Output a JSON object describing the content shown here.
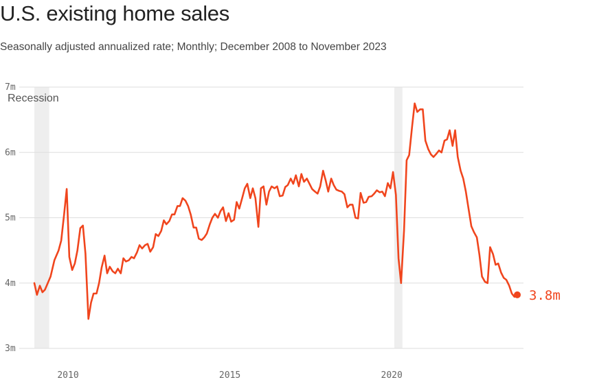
{
  "title": "U.S. existing home sales",
  "subtitle": "Seasonally adjusted annualized rate; Monthly; December 2008 to November 2023",
  "colors": {
    "line": "#f0451d",
    "grid": "#dddddd",
    "recession_band": "#eeeeee",
    "text": "#222222"
  },
  "chart_data": {
    "type": "line",
    "title": "U.S. existing home sales",
    "subtitle": "Seasonally adjusted annualized rate; Monthly; December 2008 to November 2023",
    "x_unit": "year",
    "xlim": [
      2008.96,
      2023.88
    ],
    "ylim": [
      3,
      7
    ],
    "x_ticks": [
      2010,
      2015,
      2020
    ],
    "x_tick_labels": [
      "2010",
      "2015",
      "2020"
    ],
    "y_ticks": [
      3,
      4,
      5,
      6,
      7
    ],
    "y_tick_labels": [
      "3m",
      "4m",
      "5m",
      "6m",
      "7m"
    ],
    "grid": true,
    "recessions": [
      {
        "label": "Recession",
        "start": 2008.96,
        "end": 2009.42
      },
      {
        "label": "",
        "start": 2020.08,
        "end": 2020.33
      }
    ],
    "end_label": "3.8m",
    "series": [
      {
        "name": "Existing home sales",
        "points": [
          [
            2008.96,
            4.0
          ],
          [
            2009.04,
            3.82
          ],
          [
            2009.13,
            3.96
          ],
          [
            2009.21,
            3.86
          ],
          [
            2009.29,
            3.9
          ],
          [
            2009.46,
            4.1
          ],
          [
            2009.58,
            4.35
          ],
          [
            2009.71,
            4.5
          ],
          [
            2009.79,
            4.65
          ],
          [
            2009.88,
            5.05
          ],
          [
            2009.96,
            5.44
          ],
          [
            2010.04,
            4.4
          ],
          [
            2010.13,
            4.2
          ],
          [
            2010.21,
            4.3
          ],
          [
            2010.29,
            4.5
          ],
          [
            2010.38,
            4.84
          ],
          [
            2010.46,
            4.88
          ],
          [
            2010.54,
            4.45
          ],
          [
            2010.63,
            3.45
          ],
          [
            2010.71,
            3.7
          ],
          [
            2010.79,
            3.84
          ],
          [
            2010.88,
            3.84
          ],
          [
            2010.96,
            4.0
          ],
          [
            2011.04,
            4.24
          ],
          [
            2011.13,
            4.42
          ],
          [
            2011.21,
            4.15
          ],
          [
            2011.29,
            4.25
          ],
          [
            2011.38,
            4.18
          ],
          [
            2011.46,
            4.15
          ],
          [
            2011.54,
            4.22
          ],
          [
            2011.63,
            4.15
          ],
          [
            2011.71,
            4.38
          ],
          [
            2011.79,
            4.33
          ],
          [
            2011.88,
            4.35
          ],
          [
            2011.96,
            4.4
          ],
          [
            2012.04,
            4.38
          ],
          [
            2012.13,
            4.47
          ],
          [
            2012.21,
            4.58
          ],
          [
            2012.29,
            4.53
          ],
          [
            2012.38,
            4.58
          ],
          [
            2012.46,
            4.6
          ],
          [
            2012.54,
            4.48
          ],
          [
            2012.63,
            4.55
          ],
          [
            2012.71,
            4.75
          ],
          [
            2012.79,
            4.72
          ],
          [
            2012.88,
            4.8
          ],
          [
            2012.96,
            4.96
          ],
          [
            2013.04,
            4.9
          ],
          [
            2013.13,
            4.95
          ],
          [
            2013.21,
            5.05
          ],
          [
            2013.29,
            5.05
          ],
          [
            2013.38,
            5.18
          ],
          [
            2013.46,
            5.18
          ],
          [
            2013.54,
            5.3
          ],
          [
            2013.63,
            5.26
          ],
          [
            2013.71,
            5.18
          ],
          [
            2013.79,
            5.05
          ],
          [
            2013.88,
            4.85
          ],
          [
            2013.96,
            4.85
          ],
          [
            2014.04,
            4.68
          ],
          [
            2014.13,
            4.66
          ],
          [
            2014.21,
            4.7
          ],
          [
            2014.29,
            4.76
          ],
          [
            2014.38,
            4.9
          ],
          [
            2014.46,
            5.0
          ],
          [
            2014.54,
            5.06
          ],
          [
            2014.63,
            5.0
          ],
          [
            2014.71,
            5.1
          ],
          [
            2014.79,
            5.16
          ],
          [
            2014.88,
            4.95
          ],
          [
            2014.96,
            5.07
          ],
          [
            2015.04,
            4.94
          ],
          [
            2015.13,
            4.97
          ],
          [
            2015.21,
            5.24
          ],
          [
            2015.29,
            5.14
          ],
          [
            2015.38,
            5.3
          ],
          [
            2015.46,
            5.45
          ],
          [
            2015.54,
            5.52
          ],
          [
            2015.63,
            5.3
          ],
          [
            2015.71,
            5.45
          ],
          [
            2015.79,
            5.3
          ],
          [
            2015.88,
            4.86
          ],
          [
            2015.96,
            5.45
          ],
          [
            2016.04,
            5.48
          ],
          [
            2016.13,
            5.2
          ],
          [
            2016.21,
            5.4
          ],
          [
            2016.29,
            5.48
          ],
          [
            2016.38,
            5.45
          ],
          [
            2016.46,
            5.48
          ],
          [
            2016.54,
            5.33
          ],
          [
            2016.63,
            5.34
          ],
          [
            2016.71,
            5.47
          ],
          [
            2016.79,
            5.5
          ],
          [
            2016.88,
            5.6
          ],
          [
            2016.96,
            5.52
          ],
          [
            2017.04,
            5.65
          ],
          [
            2017.13,
            5.48
          ],
          [
            2017.21,
            5.67
          ],
          [
            2017.29,
            5.55
          ],
          [
            2017.38,
            5.6
          ],
          [
            2017.46,
            5.52
          ],
          [
            2017.54,
            5.44
          ],
          [
            2017.63,
            5.4
          ],
          [
            2017.71,
            5.37
          ],
          [
            2017.79,
            5.48
          ],
          [
            2017.88,
            5.72
          ],
          [
            2017.96,
            5.57
          ],
          [
            2018.04,
            5.4
          ],
          [
            2018.13,
            5.6
          ],
          [
            2018.21,
            5.5
          ],
          [
            2018.29,
            5.43
          ],
          [
            2018.38,
            5.41
          ],
          [
            2018.46,
            5.4
          ],
          [
            2018.54,
            5.36
          ],
          [
            2018.63,
            5.16
          ],
          [
            2018.71,
            5.2
          ],
          [
            2018.79,
            5.2
          ],
          [
            2018.88,
            5.0
          ],
          [
            2018.96,
            4.99
          ],
          [
            2019.04,
            5.38
          ],
          [
            2019.13,
            5.23
          ],
          [
            2019.21,
            5.24
          ],
          [
            2019.29,
            5.32
          ],
          [
            2019.38,
            5.33
          ],
          [
            2019.46,
            5.37
          ],
          [
            2019.54,
            5.42
          ],
          [
            2019.63,
            5.39
          ],
          [
            2019.71,
            5.4
          ],
          [
            2019.79,
            5.33
          ],
          [
            2019.88,
            5.53
          ],
          [
            2019.96,
            5.45
          ],
          [
            2020.04,
            5.7
          ],
          [
            2020.13,
            5.35
          ],
          [
            2020.21,
            4.38
          ],
          [
            2020.29,
            4.0
          ],
          [
            2020.38,
            4.8
          ],
          [
            2020.46,
            5.88
          ],
          [
            2020.54,
            5.96
          ],
          [
            2020.63,
            6.4
          ],
          [
            2020.71,
            6.75
          ],
          [
            2020.79,
            6.62
          ],
          [
            2020.88,
            6.66
          ],
          [
            2020.96,
            6.66
          ],
          [
            2021.04,
            6.18
          ],
          [
            2021.13,
            6.05
          ],
          [
            2021.21,
            5.97
          ],
          [
            2021.29,
            5.93
          ],
          [
            2021.38,
            5.98
          ],
          [
            2021.46,
            6.03
          ],
          [
            2021.54,
            6.0
          ],
          [
            2021.63,
            6.18
          ],
          [
            2021.71,
            6.2
          ],
          [
            2021.79,
            6.34
          ],
          [
            2021.88,
            6.1
          ],
          [
            2021.96,
            6.34
          ],
          [
            2022.04,
            5.93
          ],
          [
            2022.13,
            5.72
          ],
          [
            2022.21,
            5.6
          ],
          [
            2022.29,
            5.4
          ],
          [
            2022.38,
            5.12
          ],
          [
            2022.46,
            4.87
          ],
          [
            2022.54,
            4.78
          ],
          [
            2022.63,
            4.7
          ],
          [
            2022.71,
            4.43
          ],
          [
            2022.79,
            4.1
          ],
          [
            2022.88,
            4.02
          ],
          [
            2022.96,
            4.0
          ],
          [
            2023.04,
            4.55
          ],
          [
            2023.13,
            4.44
          ],
          [
            2023.21,
            4.28
          ],
          [
            2023.29,
            4.3
          ],
          [
            2023.38,
            4.16
          ],
          [
            2023.46,
            4.08
          ],
          [
            2023.54,
            4.05
          ],
          [
            2023.63,
            3.96
          ],
          [
            2023.71,
            3.84
          ],
          [
            2023.79,
            3.79
          ],
          [
            2023.88,
            3.82
          ]
        ]
      }
    ]
  }
}
